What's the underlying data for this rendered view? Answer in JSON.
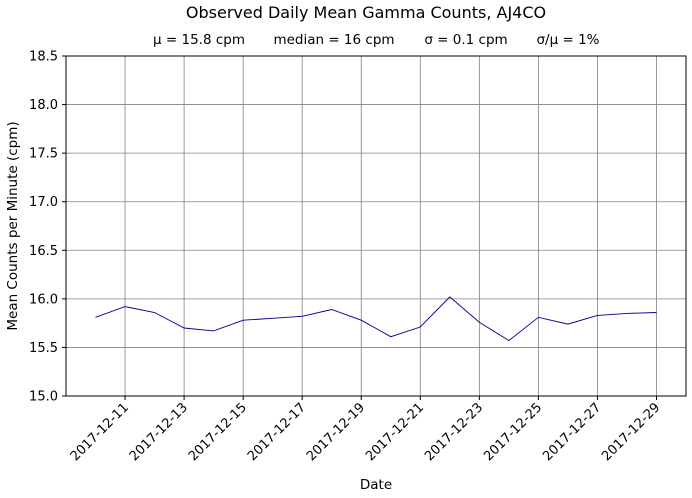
{
  "chart_data": {
    "type": "line",
    "title": "Observed Daily Mean Gamma Counts, AJ4CO",
    "subtitle": {
      "mean": "μ = 15.8 cpm",
      "median": "median = 16 cpm",
      "sigma": "σ = 0.1 cpm",
      "cv": "σ/μ = 1%"
    },
    "xlabel": "Date",
    "ylabel": "Mean Counts per Minute (cpm)",
    "ylim": [
      15.0,
      18.5
    ],
    "yticks": [
      "15.0",
      "15.5",
      "16.0",
      "16.5",
      "17.0",
      "17.5",
      "18.0",
      "18.5"
    ],
    "xlim": [
      "2017-12-09",
      "2017-12-30"
    ],
    "xticks": [
      "2017-12-11",
      "2017-12-13",
      "2017-12-15",
      "2017-12-17",
      "2017-12-19",
      "2017-12-21",
      "2017-12-23",
      "2017-12-25",
      "2017-12-27",
      "2017-12-29"
    ],
    "grid": true,
    "line_color": "#00008b",
    "x": [
      "2017-12-10",
      "2017-12-11",
      "2017-12-12",
      "2017-12-13",
      "2017-12-14",
      "2017-12-15",
      "2017-12-16",
      "2017-12-17",
      "2017-12-18",
      "2017-12-19",
      "2017-12-20",
      "2017-12-21",
      "2017-12-22",
      "2017-12-23",
      "2017-12-24",
      "2017-12-25",
      "2017-12-26",
      "2017-12-27",
      "2017-12-28",
      "2017-12-29"
    ],
    "values": [
      15.81,
      15.92,
      15.86,
      15.7,
      15.67,
      15.78,
      15.8,
      15.82,
      15.89,
      15.78,
      15.61,
      15.71,
      16.02,
      15.76,
      15.57,
      15.81,
      15.74,
      15.83,
      15.85,
      15.86
    ]
  }
}
